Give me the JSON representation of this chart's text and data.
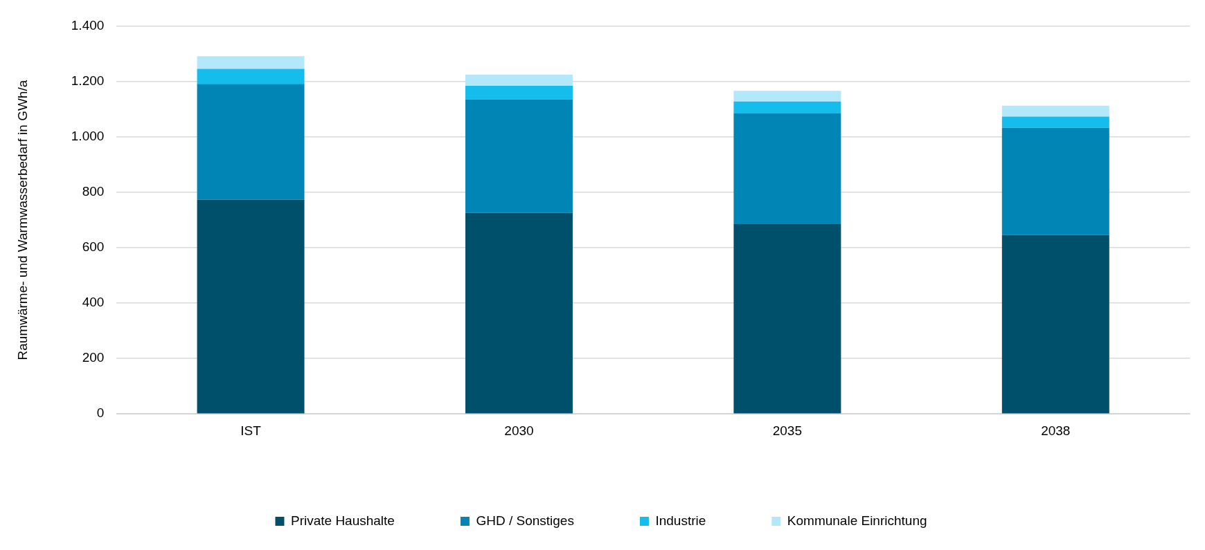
{
  "chart_data": {
    "type": "bar",
    "ylabel": "Raumwärme- und Warmwasserbedarf in GWh/a",
    "categories": [
      "IST",
      "2030",
      "2035",
      "2038"
    ],
    "stacked": true,
    "series": [
      {
        "name": "Private Haushalte",
        "color": "#00506b",
        "values": [
          774,
          726,
          685,
          646
        ]
      },
      {
        "name": "GHD / Sonstiges",
        "color": "#0085b5",
        "values": [
          418,
          410,
          400,
          387
        ]
      },
      {
        "name": "Industrie",
        "color": "#14bdeb",
        "values": [
          54,
          49,
          43,
          41
        ]
      },
      {
        "name": "Kommunale Einrichtung",
        "color": "#b3e8fb",
        "values": [
          46,
          41,
          39,
          39
        ]
      }
    ],
    "ylim": [
      0,
      1400
    ],
    "yticks": [
      {
        "value": 0,
        "label": "0"
      },
      {
        "value": 200,
        "label": "200"
      },
      {
        "value": 400,
        "label": "400"
      },
      {
        "value": 600,
        "label": "600"
      },
      {
        "value": 800,
        "label": "800"
      },
      {
        "value": 1000,
        "label": "1.000"
      },
      {
        "value": 1200,
        "label": "1.200"
      },
      {
        "value": 1400,
        "label": "1.400"
      }
    ],
    "grid": "y",
    "legend": "bottom"
  }
}
